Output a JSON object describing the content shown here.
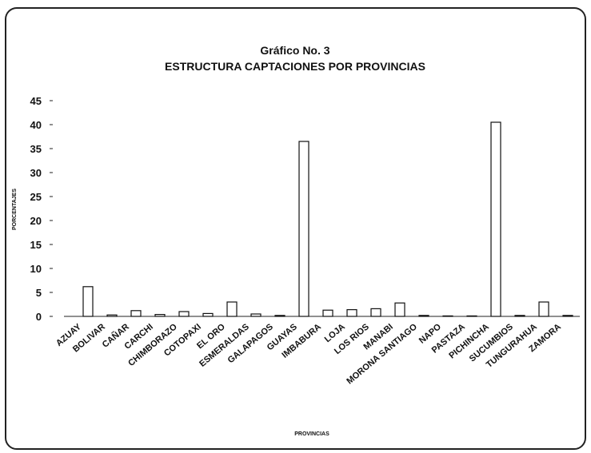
{
  "chart_data": {
    "type": "bar",
    "title": "Gráfico No. 3",
    "subtitle": "ESTRUCTURA CAPTACIONES POR PROVINCIAS",
    "x_label": "PROVINCIAS",
    "y_label": "PORCENTAJES",
    "categories": [
      "AZUAY",
      "BOLIVAR",
      "CAÑAR",
      "CARCHI",
      "CHIMBORAZO",
      "COTOPAXI",
      "EL ORO",
      "ESMERALDAS",
      "GALAPAGOS",
      "GUAYAS",
      "IMBABURA",
      "LOJA",
      "LOS RIOS",
      "MANABI",
      "MORONA SANTIAGO",
      "NAPO",
      "PASTAZA",
      "PICHINCHA",
      "SUCUMBIOS",
      "TUNGURAHUA",
      "ZAMORA"
    ],
    "values": [
      6.2,
      0.3,
      1.2,
      0.4,
      1.0,
      0.6,
      3.0,
      0.5,
      0.2,
      36.5,
      1.3,
      1.4,
      1.6,
      2.8,
      0.2,
      0.1,
      0.1,
      40.5,
      0.2,
      3.0,
      0.2
    ],
    "color": "#ffffff",
    "ylim": [
      0,
      45
    ],
    "yticks": [
      0,
      5,
      10,
      15,
      20,
      25,
      30,
      35,
      40,
      45
    ],
    "grid": false
  }
}
